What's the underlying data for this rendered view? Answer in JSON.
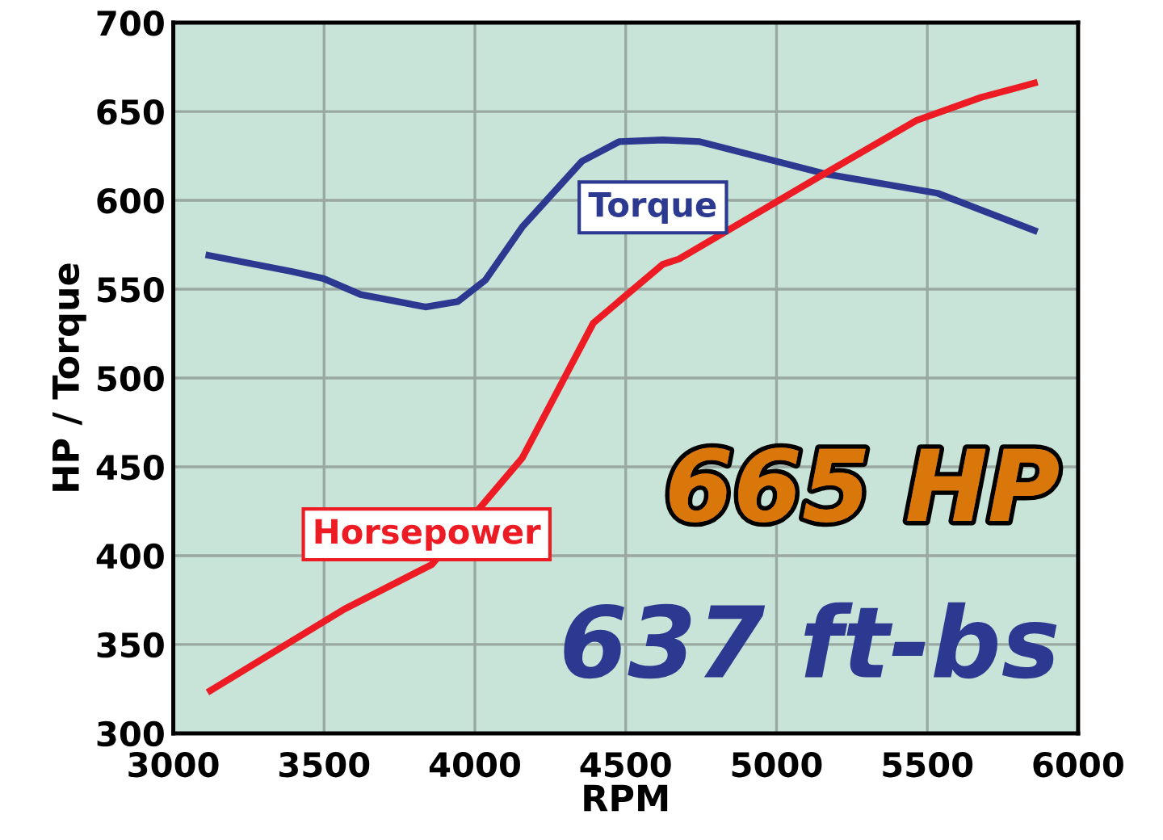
{
  "chart_data": {
    "type": "line",
    "xlabel": "RPM",
    "ylabel": "HP / Torque",
    "xlim": [
      3000,
      6000
    ],
    "xticks": [
      3000,
      3500,
      4000,
      4500,
      5000,
      5500,
      6000
    ],
    "ylim": [
      300,
      700
    ],
    "yticks": [
      300,
      350,
      400,
      450,
      500,
      550,
      600,
      650,
      700
    ],
    "grid": true,
    "legend": false,
    "marker": "none",
    "line_style": "solid",
    "series": [
      {
        "name": "Torque",
        "color": "#2b3990",
        "x": [
          3118,
          3391,
          3498,
          3621,
          3836,
          3943,
          4034,
          4157,
          4355,
          4478,
          4623,
          4746,
          5159,
          5534,
          5855
        ],
        "values": [
          569,
          560,
          556,
          547,
          540,
          543,
          555,
          585,
          622,
          633,
          634,
          633,
          615,
          604,
          583
        ]
      },
      {
        "name": "Horsepower",
        "color": "#ed1c24",
        "x": [
          3123,
          3568,
          3857,
          4157,
          4393,
          4623,
          4677,
          4928,
          5159,
          5464,
          5679,
          5855
        ],
        "values": [
          324,
          370,
          395,
          455,
          531,
          564,
          567,
          592,
          615,
          645,
          658,
          666
        ]
      }
    ],
    "annotations": [
      "665 HP",
      "637 ft-bs"
    ]
  }
}
